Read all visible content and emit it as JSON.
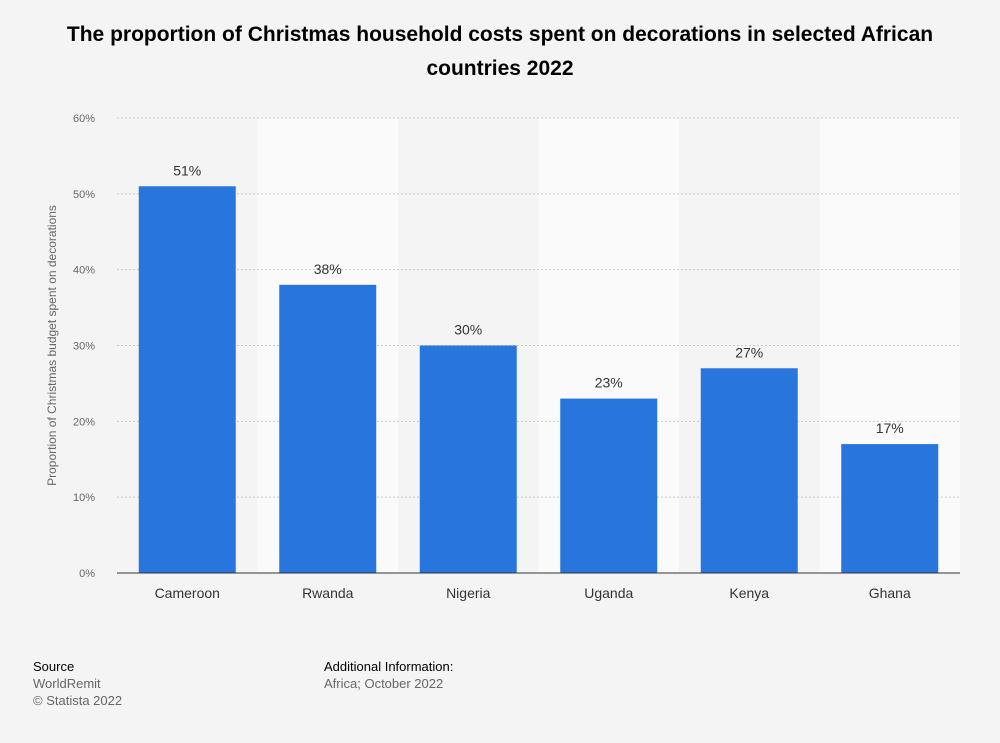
{
  "chart_data": {
    "type": "bar",
    "title": "The proportion of Christmas household costs spent on decorations in selected African countries 2022",
    "categories": [
      "Cameroon",
      "Rwanda",
      "Nigeria",
      "Uganda",
      "Kenya",
      "Ghana"
    ],
    "values": [
      51,
      38,
      30,
      23,
      27,
      17
    ],
    "value_labels": [
      "51%",
      "38%",
      "30%",
      "23%",
      "27%",
      "17%"
    ],
    "xlabel": "",
    "ylabel": "Proportion of Christmas budget spent on decorations",
    "ylim": [
      0,
      60
    ],
    "yticks": [
      0,
      10,
      20,
      30,
      40,
      50,
      60
    ],
    "ytick_labels": [
      "0%",
      "10%",
      "20%",
      "30%",
      "40%",
      "50%",
      "60%"
    ],
    "grid": true,
    "bar_color": "#2876dd"
  },
  "footer": {
    "source_heading": "Source",
    "source_name": "WorldRemit",
    "copyright": "© Statista 2022",
    "info_heading": "Additional Information:",
    "info_text": "Africa; October 2022"
  }
}
